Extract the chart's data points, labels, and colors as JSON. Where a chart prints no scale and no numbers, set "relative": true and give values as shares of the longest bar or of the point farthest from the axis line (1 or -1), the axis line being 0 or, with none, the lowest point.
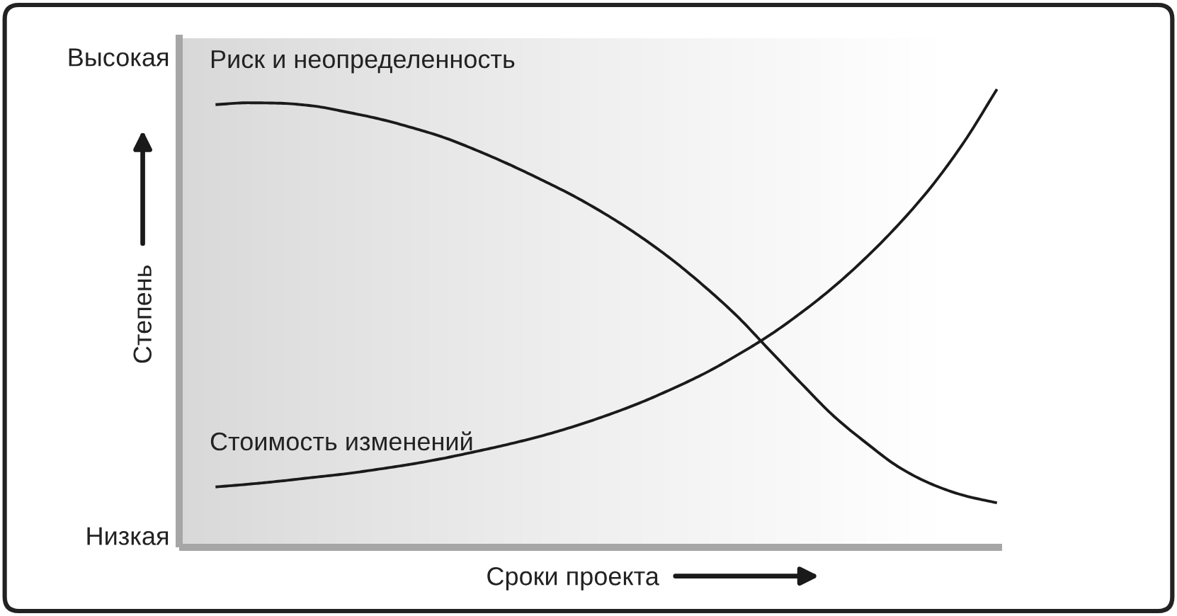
{
  "chart_data": {
    "type": "line",
    "relative": true,
    "marker": "none",
    "line_style": "solid",
    "xlabel": "Сроки проекта",
    "ylabel": "Степень",
    "annotations": [
      "Высокая",
      "Низкая"
    ],
    "categories": [
      null,
      null,
      null,
      null,
      null,
      null,
      null,
      null,
      null,
      null,
      null,
      null,
      null,
      null,
      null,
      null,
      null,
      null,
      null,
      null,
      null,
      null,
      null,
      null,
      null
    ],
    "series": [
      {
        "name": "Риск и неопределенность",
        "color": "#1a1a1a",
        "values": [
          0.966,
          0.97,
          0.969,
          0.963,
          0.95,
          0.935,
          0.916,
          0.894,
          0.866,
          0.835,
          0.801,
          0.765,
          0.724,
          0.678,
          0.626,
          0.567,
          0.502,
          0.427,
          0.352,
          0.28,
          0.221,
          0.168,
          0.131,
          0.106,
          0.09
        ]
      },
      {
        "name": "Стоимость изменений",
        "color": "#1a1a1a",
        "values": [
          0.125,
          0.131,
          0.138,
          0.146,
          0.154,
          0.164,
          0.175,
          0.188,
          0.203,
          0.219,
          0.237,
          0.258,
          0.282,
          0.309,
          0.34,
          0.374,
          0.414,
          0.458,
          0.509,
          0.566,
          0.631,
          0.704,
          0.787,
          0.885,
          1
        ]
      }
    ]
  }
}
